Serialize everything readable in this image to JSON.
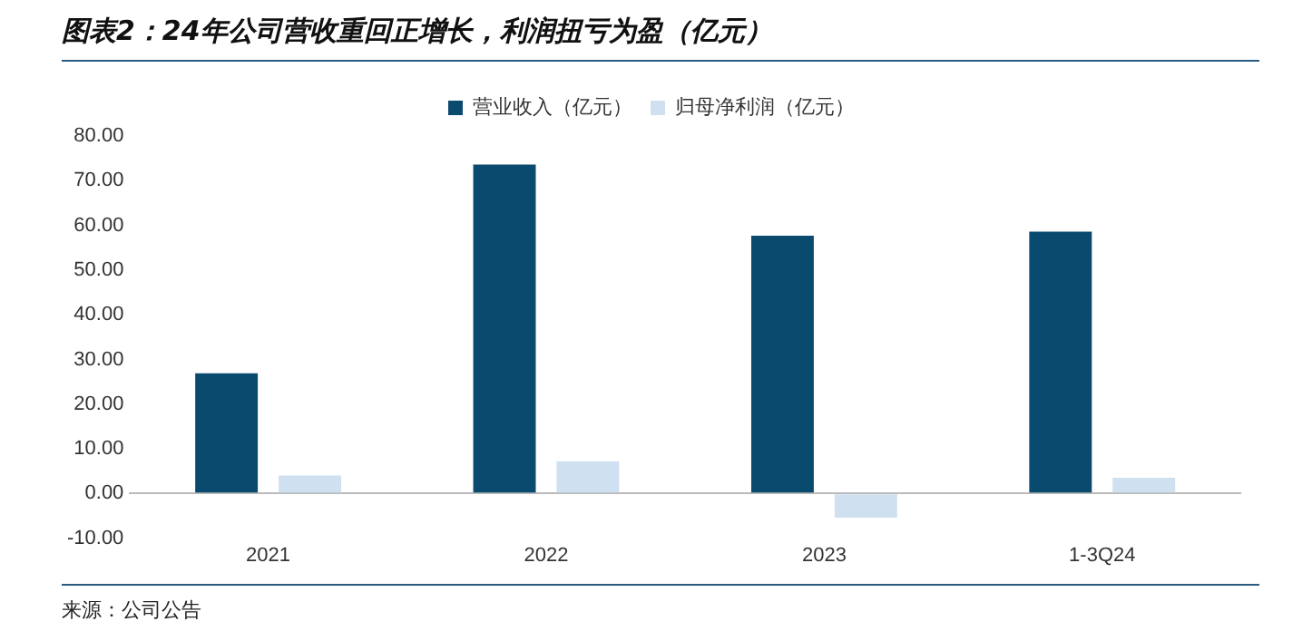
{
  "chart_data": {
    "type": "bar",
    "title": "图表2：24年公司营收重回正增长，利润扭亏为盈（亿元）",
    "categories": [
      "2021",
      "2022",
      "2023",
      "1-3Q24"
    ],
    "series": [
      {
        "name": "营业收入（亿元）",
        "color": "#0b4a6f",
        "values": [
          26.9,
          73.6,
          57.7,
          58.6
        ]
      },
      {
        "name": "归母净利润（亿元）",
        "color": "#cfe1f0",
        "values": [
          4.0,
          7.2,
          -5.4,
          3.5
        ]
      }
    ],
    "ylim": [
      -10,
      80
    ],
    "yticks": [
      {
        "value": -10,
        "label": "-10.00"
      },
      {
        "value": 0,
        "label": "0.00"
      },
      {
        "value": 10,
        "label": "10.00"
      },
      {
        "value": 20,
        "label": "20.00"
      },
      {
        "value": 30,
        "label": "30.00"
      },
      {
        "value": 40,
        "label": "40.00"
      },
      {
        "value": 50,
        "label": "50.00"
      },
      {
        "value": 60,
        "label": "60.00"
      },
      {
        "value": 70,
        "label": "70.00"
      },
      {
        "value": 80,
        "label": "80.00"
      }
    ],
    "grid": false,
    "legend": "top",
    "annotations": [
      "来源：公司公告"
    ]
  }
}
